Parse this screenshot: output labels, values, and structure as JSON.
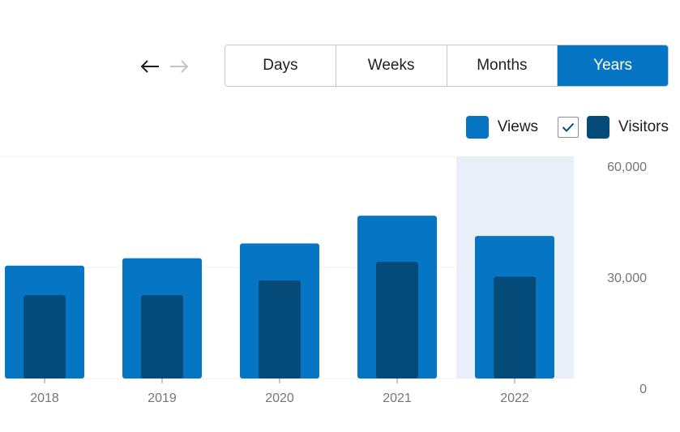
{
  "nav": {
    "prev_icon": "arrow-left-icon",
    "next_icon": "arrow-right-icon",
    "next_disabled": true
  },
  "period_tabs": [
    {
      "label": "Days",
      "active": false
    },
    {
      "label": "Weeks",
      "active": false
    },
    {
      "label": "Months",
      "active": false
    },
    {
      "label": "Years",
      "active": true
    }
  ],
  "legend": {
    "views_label": "Views",
    "visitors_label": "Visitors",
    "visitors_checked": true,
    "views_color": "#0675c4",
    "visitors_color": "#044b7a"
  },
  "chart_data": {
    "type": "bar",
    "categories": [
      "2018",
      "2019",
      "2020",
      "2021",
      "2022"
    ],
    "series": [
      {
        "name": "Views",
        "values": [
          30500,
          32500,
          36500,
          44000,
          38500
        ],
        "color": "#0675c4"
      },
      {
        "name": "Visitors",
        "values": [
          22500,
          22500,
          26500,
          31500,
          27500
        ],
        "color": "#044b7a"
      }
    ],
    "ylim": [
      0,
      60000
    ],
    "y_ticks": [
      "0",
      "30,000",
      "60,000"
    ],
    "y_axis_side": "right",
    "highlighted_category": "2022",
    "highlight_color": "#e8eff9",
    "grid": true
  }
}
